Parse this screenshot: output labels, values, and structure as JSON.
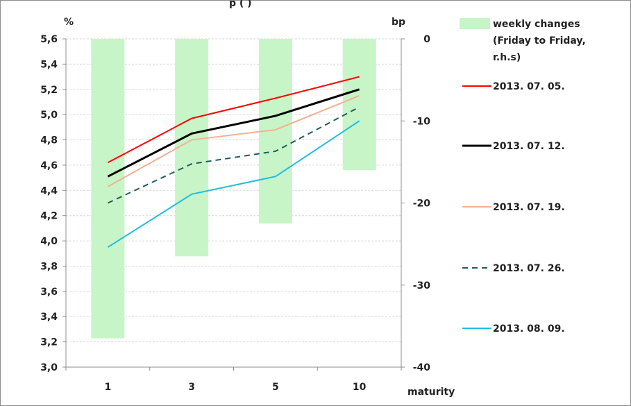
{
  "title_fragment": "p     (     )",
  "left_unit": "%",
  "right_unit": "bp",
  "chart_data": {
    "type": "line",
    "categories": [
      "1",
      "3",
      "5",
      "10"
    ],
    "xlabel": "maturity",
    "ylim_left": [
      3.0,
      5.6
    ],
    "yticks_left": [
      "3,0",
      "3,2",
      "3,4",
      "3,6",
      "3,8",
      "4,0",
      "4,2",
      "4,4",
      "4,6",
      "4,8",
      "5,0",
      "5,2",
      "5,4",
      "5,6"
    ],
    "ylim_right": [
      -40,
      0
    ],
    "yticks_right": [
      "-40",
      "-30",
      "-20",
      "-10",
      "0"
    ],
    "grid": true,
    "legend_position": "right",
    "bars": {
      "name": "weekly changes",
      "name_line2": "(Friday to Friday,",
      "name_line3": "r.h.s)",
      "axis": "right",
      "color": "#c8f5c8",
      "values": [
        -36.5,
        -26.5,
        -22.5,
        -16
      ]
    },
    "series": [
      {
        "name": "2013. 07. 05.",
        "color": "#ff0000",
        "dash": "solid",
        "width": 2,
        "values": [
          4.62,
          4.97,
          5.13,
          5.3
        ]
      },
      {
        "name": "2013. 07. 12.",
        "color": "#000000",
        "dash": "solid",
        "width": 3,
        "values": [
          4.51,
          4.85,
          4.99,
          5.2
        ]
      },
      {
        "name": "2013. 07. 19.",
        "color": "#f5b090",
        "dash": "solid",
        "width": 2,
        "values": [
          4.43,
          4.8,
          4.88,
          5.15
        ]
      },
      {
        "name": "2013. 07. 26.",
        "color": "#1e5c5c",
        "dash": "dashed",
        "width": 2,
        "values": [
          4.3,
          4.61,
          4.71,
          5.06
        ]
      },
      {
        "name": "2013. 08. 09.",
        "color": "#1fbde0",
        "dash": "solid",
        "width": 2,
        "values": [
          3.95,
          4.37,
          4.51,
          4.95
        ]
      }
    ]
  }
}
